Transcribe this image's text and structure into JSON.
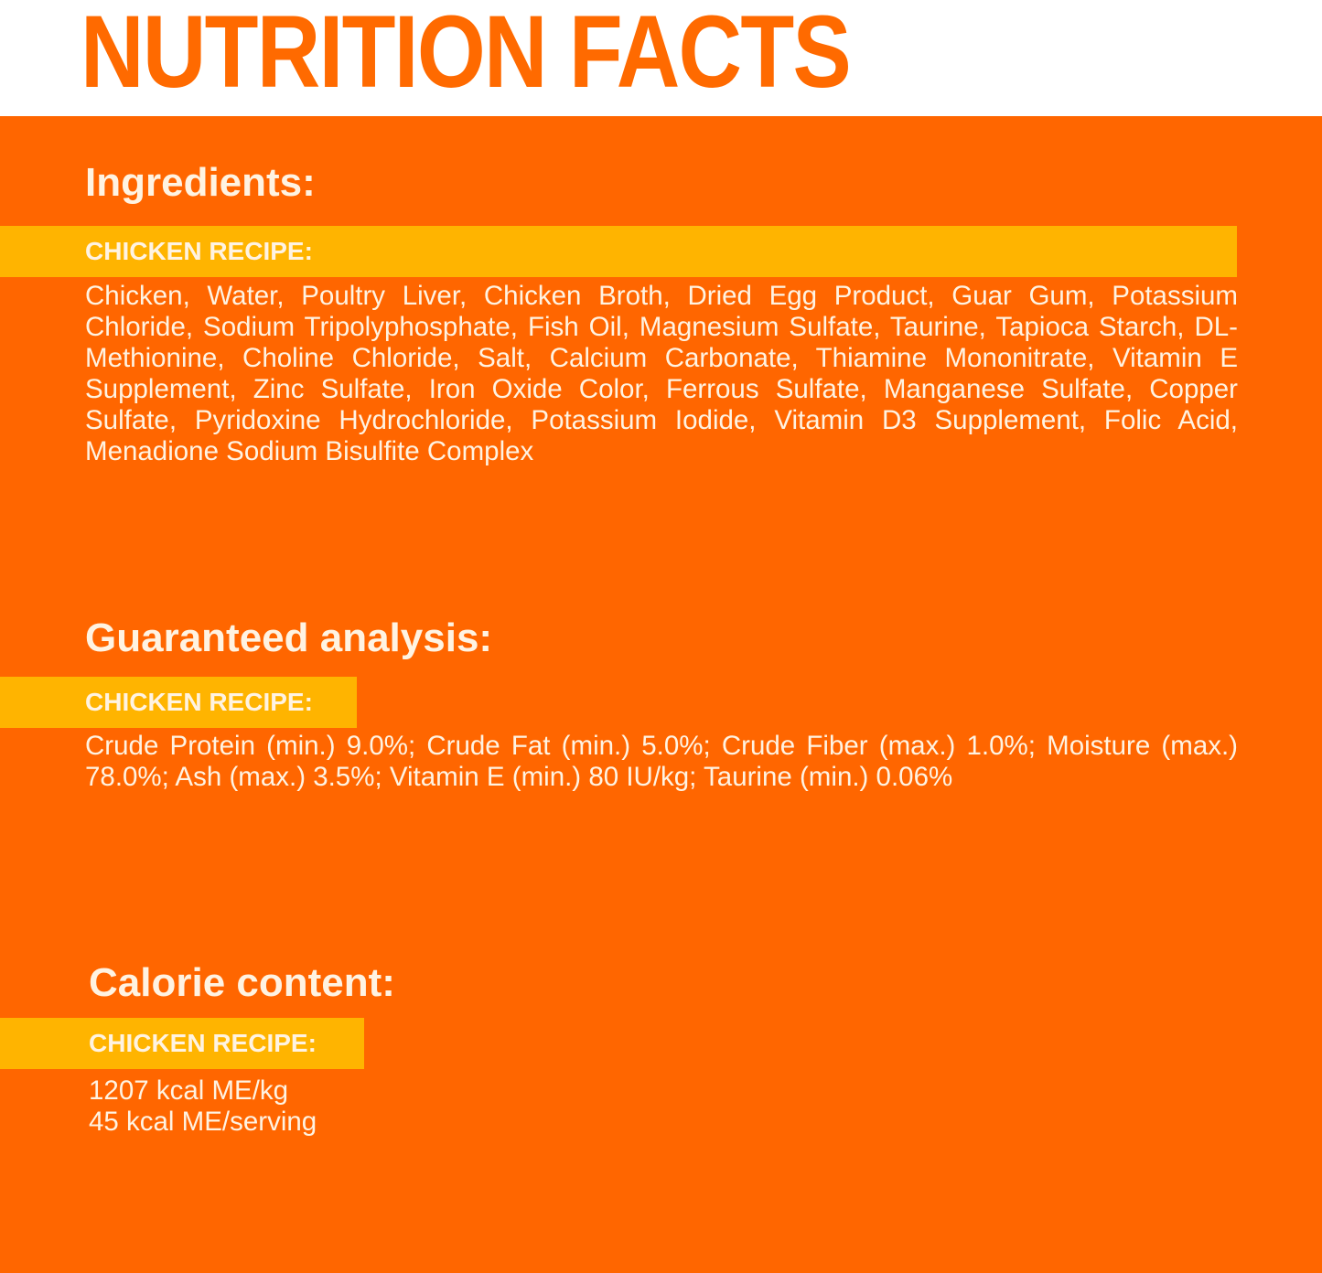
{
  "colors": {
    "orange": "#FF6600",
    "yellow": "#FFB400",
    "text": "#FFF3E2",
    "title": "#FF6A00"
  },
  "title": "NUTRITION FACTS",
  "ingredients": {
    "heading": "Ingredients:",
    "recipe_label": "CHICKEN RECIPE:",
    "text": "Chicken, Water, Poultry Liver, Chicken Broth, Dried Egg Product, Guar Gum, Potassium Chloride, Sodium Tripolyphosphate, Fish Oil, Magnesium Sulfate, Taurine, Tapioca Starch, DL-Methionine, Choline Chloride, Salt, Calcium Carbonate, Thiamine Mononitrate, Vitamin E Supplement, Zinc Sulfate, Iron Oxide Color, Ferrous Sulfate, Manganese Sulfate, Copper Sulfate, Pyridoxine Hydrochloride, Potassium Iodide, Vitamin D3 Supplement, Folic Acid, Menadione Sodium Bisulfite Complex"
  },
  "analysis": {
    "heading": "Guaranteed analysis:",
    "recipe_label": "CHICKEN RECIPE:",
    "text": "Crude Protein (min.) 9.0%; Crude Fat (min.) 5.0%; Crude Fiber (max.) 1.0%; Moisture (max.) 78.0%; Ash (max.) 3.5%; Vitamin E (min.) 80 IU/kg; Taurine (min.) 0.06%"
  },
  "calories": {
    "heading": "Calorie content:",
    "recipe_label": "CHICKEN RECIPE:",
    "lines": [
      "1207 kcal ME/kg",
      "45 kcal ME/serving"
    ]
  }
}
